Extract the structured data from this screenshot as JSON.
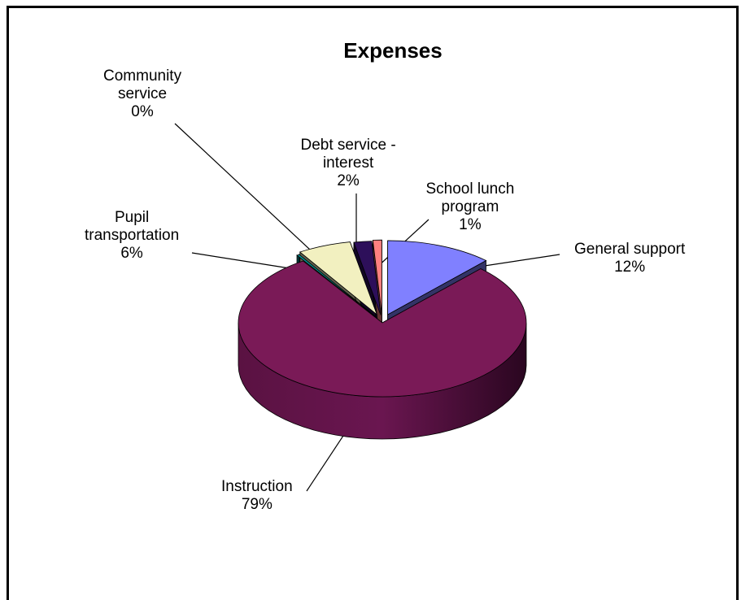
{
  "chart_data": {
    "type": "pie",
    "title": "Expenses",
    "slices": [
      {
        "name": "General support",
        "name_lines": [
          "General support"
        ],
        "percent_label": "12%",
        "value": 12,
        "color": "#8080ff"
      },
      {
        "name": "Instruction",
        "name_lines": [
          "Instruction"
        ],
        "percent_label": "79%",
        "value": 79,
        "color": "#7a1a57"
      },
      {
        "name": "Community service",
        "name_lines": [
          "Community",
          "service"
        ],
        "percent_label": "0%",
        "value": 0.3,
        "color": "#009999"
      },
      {
        "name": "Pupil transportation",
        "name_lines": [
          "Pupil",
          "transportation"
        ],
        "percent_label": "6%",
        "value": 6,
        "color": "#f2f0c0"
      },
      {
        "name": "Debt service - interest",
        "name_lines": [
          "Debt service -",
          "interest"
        ],
        "percent_label": "2%",
        "value": 2,
        "color": "#2d0f5a"
      },
      {
        "name": "School lunch program",
        "name_lines": [
          "School lunch",
          "program"
        ],
        "percent_label": "1%",
        "value": 1,
        "color": "#ff8080"
      }
    ],
    "legend": "none",
    "style": "3d-exploded"
  }
}
